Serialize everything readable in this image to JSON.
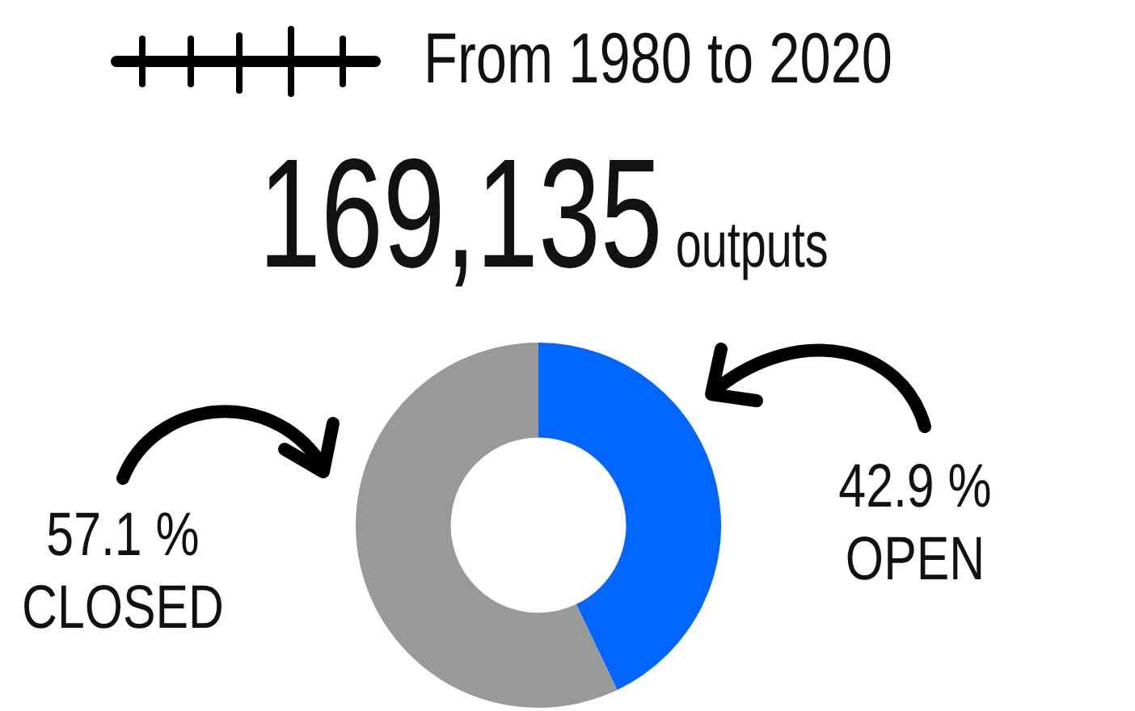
{
  "chart_data": {
    "type": "donut",
    "title": "From 1980 to 2020",
    "annotations": [
      "169,135",
      "outputs"
    ],
    "categories": [
      "OPEN",
      "CLOSED"
    ],
    "values": [
      42.9,
      57.1
    ],
    "colors": [
      "#0066ff",
      "#999999"
    ],
    "value_labels": [
      "42.9 %",
      "57.1 %"
    ],
    "legend": false
  }
}
